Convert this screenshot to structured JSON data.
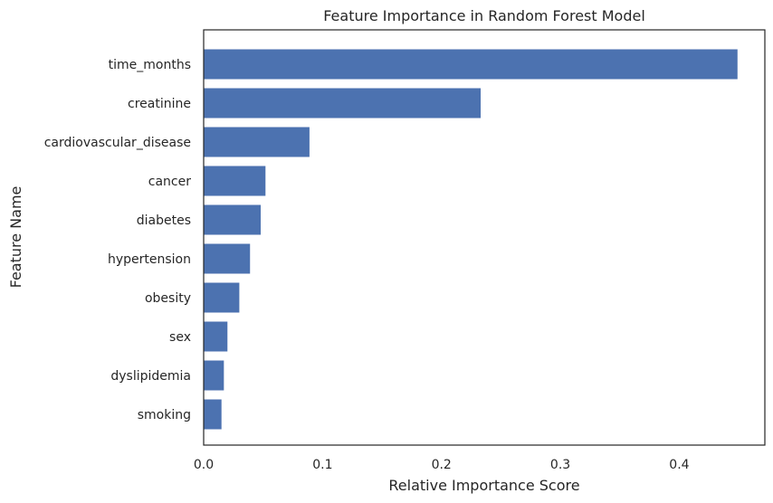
{
  "chart_data": {
    "type": "bar",
    "orientation": "horizontal",
    "title": "Feature Importance in Random Forest Model",
    "xlabel": "Relative Importance Score",
    "ylabel": "Feature Name",
    "categories": [
      "time_months",
      "creatinine",
      "cardiovascular_disease",
      "cancer",
      "diabetes",
      "hypertension",
      "obesity",
      "sex",
      "dyslipidemia",
      "smoking"
    ],
    "values": [
      0.449,
      0.233,
      0.089,
      0.052,
      0.048,
      0.039,
      0.03,
      0.02,
      0.017,
      0.015
    ],
    "xlim": [
      0,
      0.472
    ],
    "xticks": [
      0.0,
      0.1,
      0.2,
      0.3,
      0.4
    ],
    "xtick_labels": [
      "0.0",
      "0.1",
      "0.2",
      "0.3",
      "0.4"
    ],
    "grid": false,
    "bar_color": "#4c72b0"
  }
}
